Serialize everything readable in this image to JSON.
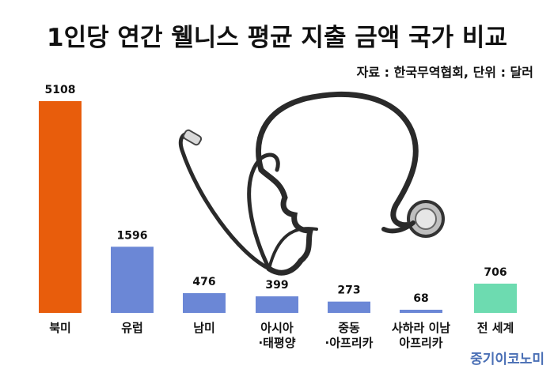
{
  "title": "1인당 연간 웰니스 평균 지출 금액 국가 비교",
  "source": "자료 : 한국무역협회, 단위 : 달러",
  "brand": "중기이코노미",
  "chart_data": {
    "type": "bar",
    "categories": [
      [
        "북미"
      ],
      [
        "유럽"
      ],
      [
        "남미"
      ],
      [
        "아시아",
        "·태평양"
      ],
      [
        "중동",
        "·아프리카"
      ],
      [
        "사하라 이남",
        "아프리카"
      ],
      [
        "전 세계"
      ]
    ],
    "values": [
      5108,
      1596,
      476,
      399,
      273,
      68,
      706
    ],
    "colors": [
      "#e85d0c",
      "#6b87d6",
      "#6b87d6",
      "#6b87d6",
      "#6b87d6",
      "#6b87d6",
      "#6ddbb0"
    ],
    "ylim": [
      0,
      5108
    ]
  }
}
